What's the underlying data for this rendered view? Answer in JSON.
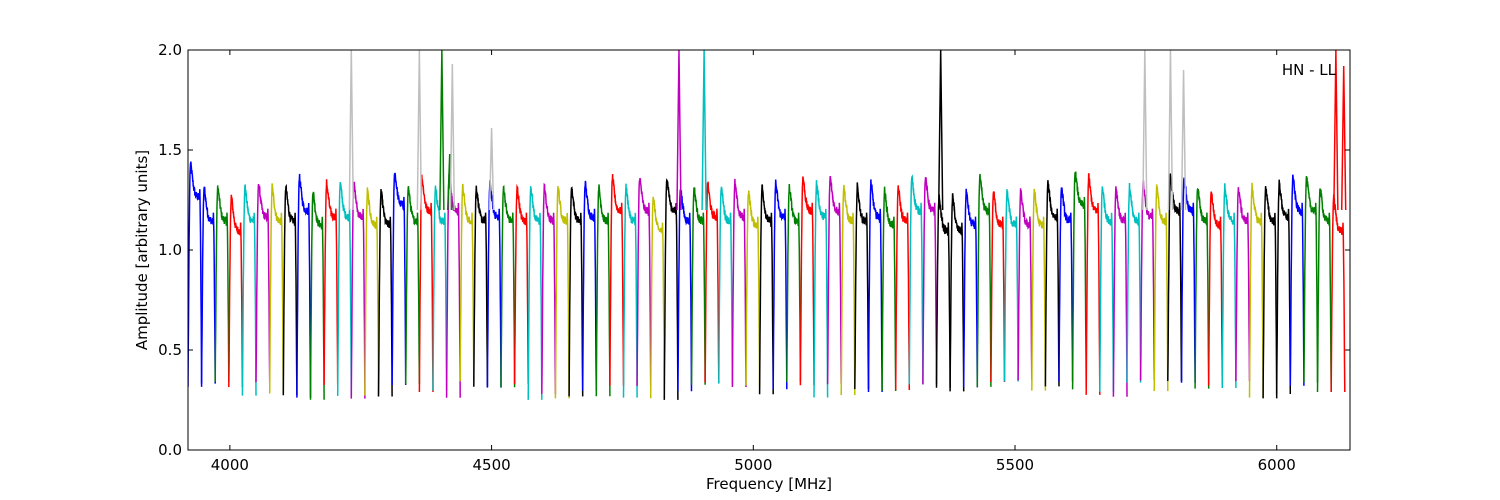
{
  "chart_data": {
    "type": "line",
    "title": "",
    "xlabel": "Frequency [MHz]",
    "ylabel": "Amplitude [arbitrary units]",
    "xlim": [
      3920,
      6140
    ],
    "ylim": [
      0.0,
      2.0
    ],
    "xticks": [
      4000,
      4500,
      5000,
      5500,
      6000
    ],
    "yticks": [
      0.0,
      0.5,
      1.0,
      1.5,
      2.0
    ],
    "xtick_labels": [
      "4000",
      "4500",
      "5000",
      "5500",
      "6000"
    ],
    "ytick_labels": [
      "0.0",
      "0.5",
      "1.0",
      "1.5",
      "2.0"
    ],
    "annotation": "HN - LL",
    "grid": false,
    "legend": "none",
    "colors": {
      "blue": "#0000ff",
      "green": "#008000",
      "red": "#ff0000",
      "cyan": "#00bfbf",
      "magenta": "#bf00bf",
      "yellow": "#bfbf00",
      "black": "#000000",
      "gray": "#bfbfbf"
    },
    "channel_width_mhz": 26,
    "color_cycle": [
      "blue",
      "green",
      "red",
      "cyan",
      "magenta",
      "yellow",
      "black"
    ],
    "channels": [
      {
        "start": 3920,
        "level": 1.32,
        "color": "blue"
      },
      {
        "start": 3946,
        "level": 1.2,
        "color": "blue"
      },
      {
        "start": 3972,
        "level": 1.2,
        "color": "green"
      },
      {
        "start": 3998,
        "level": 1.15,
        "color": "red"
      },
      {
        "start": 4024,
        "level": 1.2,
        "color": "cyan"
      },
      {
        "start": 4050,
        "level": 1.22,
        "color": "magenta"
      },
      {
        "start": 4076,
        "level": 1.2,
        "color": "yellow"
      },
      {
        "start": 4102,
        "level": 1.2,
        "color": "black"
      },
      {
        "start": 4128,
        "level": 1.25,
        "color": "blue"
      },
      {
        "start": 4154,
        "level": 1.18,
        "color": "green"
      },
      {
        "start": 4180,
        "level": 1.22,
        "color": "red"
      },
      {
        "start": 4206,
        "level": 1.22,
        "color": "cyan"
      },
      {
        "start": 4232,
        "level": 1.22,
        "color": "magenta"
      },
      {
        "start": 4258,
        "level": 1.18,
        "color": "yellow"
      },
      {
        "start": 4284,
        "level": 1.18,
        "color": "black"
      },
      {
        "start": 4310,
        "level": 1.28,
        "color": "blue"
      },
      {
        "start": 4336,
        "level": 1.2,
        "color": "green"
      },
      {
        "start": 4362,
        "level": 1.25,
        "color": "red"
      },
      {
        "start": 4388,
        "level": 1.2,
        "color": "cyan"
      },
      {
        "start": 4414,
        "level": 1.25,
        "color": "magenta"
      },
      {
        "start": 4440,
        "level": 1.2,
        "color": "yellow"
      },
      {
        "start": 4466,
        "level": 1.2,
        "color": "black"
      },
      {
        "start": 4492,
        "level": 1.22,
        "color": "blue"
      },
      {
        "start": 4518,
        "level": 1.2,
        "color": "green"
      },
      {
        "start": 4544,
        "level": 1.2,
        "color": "red"
      },
      {
        "start": 4570,
        "level": 1.2,
        "color": "cyan"
      },
      {
        "start": 4596,
        "level": 1.2,
        "color": "magenta"
      },
      {
        "start": 4622,
        "level": 1.2,
        "color": "yellow"
      },
      {
        "start": 4648,
        "level": 1.2,
        "color": "black"
      },
      {
        "start": 4674,
        "level": 1.22,
        "color": "blue"
      },
      {
        "start": 4700,
        "level": 1.2,
        "color": "green"
      },
      {
        "start": 4726,
        "level": 1.25,
        "color": "red"
      },
      {
        "start": 4752,
        "level": 1.2,
        "color": "cyan"
      },
      {
        "start": 4778,
        "level": 1.25,
        "color": "magenta"
      },
      {
        "start": 4804,
        "level": 1.15,
        "color": "yellow"
      },
      {
        "start": 4830,
        "level": 1.25,
        "color": "black"
      },
      {
        "start": 4856,
        "level": 1.2,
        "color": "blue"
      },
      {
        "start": 4882,
        "level": 1.2,
        "color": "green"
      },
      {
        "start": 4908,
        "level": 1.22,
        "color": "red"
      },
      {
        "start": 4934,
        "level": 1.2,
        "color": "cyan"
      },
      {
        "start": 4960,
        "level": 1.22,
        "color": "magenta"
      },
      {
        "start": 4986,
        "level": 1.18,
        "color": "yellow"
      },
      {
        "start": 5012,
        "level": 1.2,
        "color": "black"
      },
      {
        "start": 5038,
        "level": 1.22,
        "color": "blue"
      },
      {
        "start": 5064,
        "level": 1.2,
        "color": "green"
      },
      {
        "start": 5090,
        "level": 1.25,
        "color": "red"
      },
      {
        "start": 5116,
        "level": 1.22,
        "color": "cyan"
      },
      {
        "start": 5142,
        "level": 1.25,
        "color": "magenta"
      },
      {
        "start": 5168,
        "level": 1.2,
        "color": "yellow"
      },
      {
        "start": 5194,
        "level": 1.2,
        "color": "black"
      },
      {
        "start": 5220,
        "level": 1.22,
        "color": "blue"
      },
      {
        "start": 5246,
        "level": 1.18,
        "color": "green"
      },
      {
        "start": 5272,
        "level": 1.2,
        "color": "red"
      },
      {
        "start": 5298,
        "level": 1.25,
        "color": "cyan"
      },
      {
        "start": 5324,
        "level": 1.25,
        "color": "magenta"
      },
      {
        "start": 5350,
        "level": 1.15,
        "color": "black"
      },
      {
        "start": 5376,
        "level": 1.15,
        "color": "black"
      },
      {
        "start": 5402,
        "level": 1.18,
        "color": "blue"
      },
      {
        "start": 5428,
        "level": 1.25,
        "color": "green"
      },
      {
        "start": 5454,
        "level": 1.18,
        "color": "red"
      },
      {
        "start": 5480,
        "level": 1.18,
        "color": "cyan"
      },
      {
        "start": 5506,
        "level": 1.18,
        "color": "magenta"
      },
      {
        "start": 5532,
        "level": 1.18,
        "color": "yellow"
      },
      {
        "start": 5558,
        "level": 1.22,
        "color": "black"
      },
      {
        "start": 5584,
        "level": 1.2,
        "color": "blue"
      },
      {
        "start": 5610,
        "level": 1.28,
        "color": "green"
      },
      {
        "start": 5636,
        "level": 1.25,
        "color": "red"
      },
      {
        "start": 5662,
        "level": 1.2,
        "color": "cyan"
      },
      {
        "start": 5688,
        "level": 1.2,
        "color": "magenta"
      },
      {
        "start": 5714,
        "level": 1.2,
        "color": "cyan"
      },
      {
        "start": 5740,
        "level": 1.22,
        "color": "magenta"
      },
      {
        "start": 5766,
        "level": 1.2,
        "color": "yellow"
      },
      {
        "start": 5792,
        "level": 1.25,
        "color": "black"
      },
      {
        "start": 5818,
        "level": 1.25,
        "color": "blue"
      },
      {
        "start": 5844,
        "level": 1.2,
        "color": "green"
      },
      {
        "start": 5870,
        "level": 1.18,
        "color": "red"
      },
      {
        "start": 5896,
        "level": 1.2,
        "color": "cyan"
      },
      {
        "start": 5922,
        "level": 1.2,
        "color": "magenta"
      },
      {
        "start": 5948,
        "level": 1.2,
        "color": "yellow"
      },
      {
        "start": 5974,
        "level": 1.2,
        "color": "black"
      },
      {
        "start": 6000,
        "level": 1.22,
        "color": "black"
      },
      {
        "start": 6026,
        "level": 1.25,
        "color": "blue"
      },
      {
        "start": 6052,
        "level": 1.25,
        "color": "green"
      },
      {
        "start": 6078,
        "level": 1.2,
        "color": "green"
      },
      {
        "start": 6104,
        "level": 1.15,
        "color": "red"
      }
    ],
    "spikes": [
      {
        "x": 4232,
        "y": 2.0,
        "color": "gray"
      },
      {
        "x": 4362,
        "y": 2.0,
        "color": "gray"
      },
      {
        "x": 4405,
        "y": 2.0,
        "color": "green"
      },
      {
        "x": 4420,
        "y": 1.48,
        "color": "green"
      },
      {
        "x": 4425,
        "y": 1.93,
        "color": "gray"
      },
      {
        "x": 4500,
        "y": 1.61,
        "color": "gray"
      },
      {
        "x": 4858,
        "y": 2.0,
        "color": "magenta"
      },
      {
        "x": 4906,
        "y": 2.0,
        "color": "cyan"
      },
      {
        "x": 5358,
        "y": 2.0,
        "color": "black"
      },
      {
        "x": 5748,
        "y": 2.0,
        "color": "gray"
      },
      {
        "x": 5797,
        "y": 2.0,
        "color": "gray"
      },
      {
        "x": 5822,
        "y": 1.9,
        "color": "gray"
      },
      {
        "x": 6113,
        "y": 2.0,
        "color": "red"
      },
      {
        "x": 6128,
        "y": 1.92,
        "color": "red"
      }
    ]
  }
}
